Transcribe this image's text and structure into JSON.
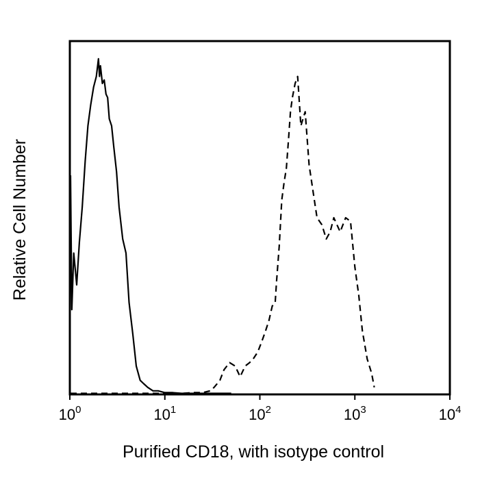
{
  "chart_data": {
    "type": "line",
    "title": "",
    "xlabel": "Purified CD18, with isotype control",
    "ylabel": "Relative Cell Number",
    "x_scale": "log",
    "xlim": [
      1,
      10000
    ],
    "ylim": [
      0,
      100
    ],
    "grid": false,
    "x_ticks": [
      {
        "base": "10",
        "exp": "0",
        "value": 1
      },
      {
        "base": "10",
        "exp": "1",
        "value": 10
      },
      {
        "base": "10",
        "exp": "2",
        "value": 100
      },
      {
        "base": "10",
        "exp": "3",
        "value": 1000
      },
      {
        "base": "10",
        "exp": "4",
        "value": 10000
      }
    ],
    "series": [
      {
        "style": "solid",
        "color": "#000000",
        "x": [
          1.0,
          1.05,
          1.1,
          1.18,
          1.26,
          1.35,
          1.45,
          1.55,
          1.66,
          1.78,
          1.9,
          2.0,
          2.05,
          2.1,
          2.2,
          2.3,
          2.4,
          2.5,
          2.6,
          2.75,
          2.9,
          3.1,
          3.3,
          3.6,
          3.9,
          4.2,
          4.6,
          5.0,
          5.5,
          6.0,
          6.6,
          7.5,
          8.5,
          10.0,
          12.0,
          15.0,
          20.0,
          25.0,
          30.0,
          40.0,
          50.0
        ],
        "y": [
          62,
          24,
          40,
          31,
          43,
          53,
          66,
          76,
          82,
          87,
          90,
          95,
          90,
          93,
          88,
          89,
          85,
          84,
          78,
          76,
          70,
          63,
          53,
          44,
          40,
          26,
          17,
          8,
          4,
          3,
          2,
          1,
          1,
          0.5,
          0.5,
          0.3,
          0.3,
          0.3,
          0.3,
          0.3,
          0.3
        ]
      },
      {
        "style": "dashed",
        "color": "#000000",
        "x": [
          1.0,
          2.0,
          5.0,
          10.0,
          15.0,
          20.0,
          25.0,
          30.0,
          33.0,
          38.0,
          42.0,
          48.0,
          55.0,
          62.0,
          70.0,
          78.0,
          85.0,
          95.0,
          105.0,
          115.0,
          125.0,
          135.0,
          145.0,
          150.0,
          160.0,
          170.0,
          180.0,
          190.0,
          200.0,
          210.0,
          220.0,
          235.0,
          250.0,
          270.0,
          300.0,
          330.0,
          370.0,
          400.0,
          450.0,
          500.0,
          550.0,
          600.0,
          700.0,
          800.0,
          900.0,
          1000.0,
          1100.0,
          1200.0,
          1350.0,
          1500.0,
          1600.0
        ],
        "y": [
          0.3,
          0.3,
          0.3,
          0.3,
          0.3,
          0.5,
          0.5,
          1,
          2,
          4,
          7,
          9,
          8,
          5,
          8,
          9,
          10,
          12,
          15,
          18,
          21,
          25,
          26,
          32,
          42,
          55,
          60,
          64,
          72,
          80,
          84,
          88,
          90,
          76,
          80,
          65,
          56,
          50,
          48,
          44,
          46,
          50,
          46,
          50,
          49,
          36,
          28,
          18,
          10,
          6,
          2
        ]
      }
    ]
  }
}
